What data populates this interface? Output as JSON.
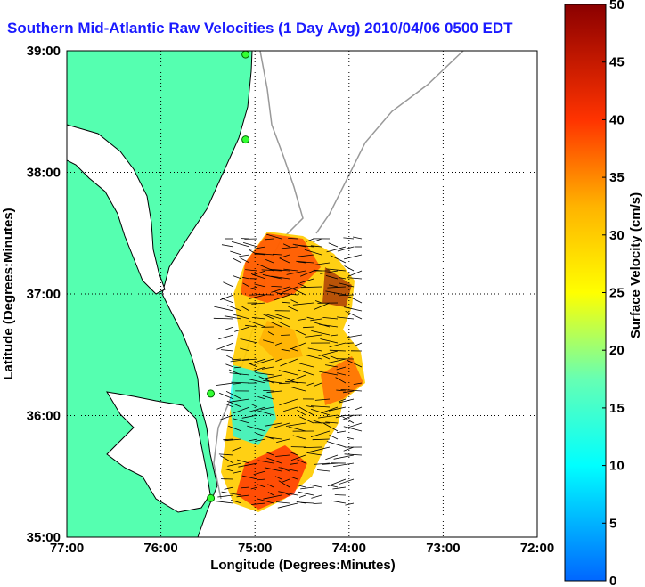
{
  "chart_data": {
    "type": "heatmap",
    "title": "Southern Mid-Atlantic Raw Velocities (1 Day Avg) 2010/04/06 0500 EDT",
    "xlabel": "Longitude (Degrees:Minutes)",
    "ylabel": "Latitude (Degrees:Minutes)",
    "x_ticks": [
      "77:00",
      "76:00",
      "75:00",
      "74:00",
      "73:00",
      "72:00"
    ],
    "y_ticks": [
      "39:00",
      "38:00",
      "37:00",
      "36:00",
      "35:00"
    ],
    "xlim": [
      -77,
      -72
    ],
    "ylim": [
      35,
      39
    ],
    "grid": true,
    "colorbar": {
      "label": "Surface Velocity (cm/s)",
      "min": 0,
      "max": 50,
      "ticks": [
        "0",
        "5",
        "10",
        "15",
        "20",
        "25",
        "30",
        "35",
        "40",
        "45",
        "50"
      ]
    },
    "stations": [
      {
        "lon": -75.1,
        "lat": 38.97
      },
      {
        "lon": -75.1,
        "lat": 38.27
      },
      {
        "lon": -75.47,
        "lat": 36.18
      },
      {
        "lon": -75.47,
        "lat": 35.32
      }
    ]
  }
}
